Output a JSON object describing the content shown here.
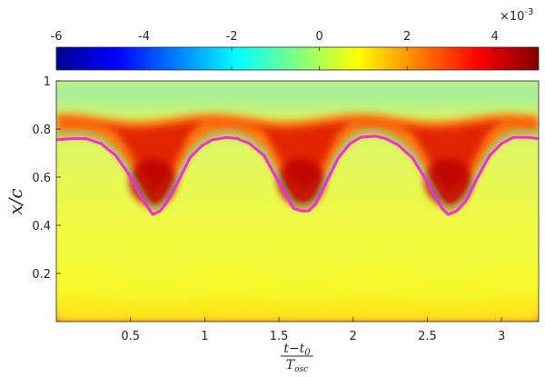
{
  "chart_data": {
    "type": "heatmap",
    "colormap": "jet",
    "colorbar": {
      "range": [
        -0.006,
        0.005
      ],
      "ticks": [
        -6,
        -4,
        -2,
        0,
        2,
        4
      ],
      "tick_labels": [
        "-6",
        "-4",
        "-2",
        "0",
        "2",
        "4"
      ],
      "multiplier_base": "×10",
      "multiplier_exp": "-3",
      "placement": "top"
    },
    "x_axis": {
      "label_num": "t−t",
      "label_num_sub": "0",
      "label_den": "T",
      "label_den_sub": "osc",
      "range": [
        0.0,
        3.25
      ],
      "ticks": [
        0.5,
        1,
        1.5,
        2,
        2.5,
        3
      ],
      "tick_labels": [
        "0.5",
        "1",
        "1.5",
        "2",
        "2.5",
        "3"
      ]
    },
    "y_axis": {
      "label": "x/c",
      "range": [
        0.0,
        1.0
      ],
      "ticks": [
        0.2,
        0.4,
        0.6,
        0.8,
        1
      ],
      "tick_labels": [
        "0.2",
        "0.4",
        "0.6",
        "0.8",
        "1"
      ]
    },
    "contour_line": {
      "color": "#e830e0",
      "points": [
        [
          0.0,
          0.755
        ],
        [
          0.1,
          0.76
        ],
        [
          0.2,
          0.76
        ],
        [
          0.3,
          0.74
        ],
        [
          0.4,
          0.69
        ],
        [
          0.48,
          0.62
        ],
        [
          0.55,
          0.54
        ],
        [
          0.6,
          0.49
        ],
        [
          0.65,
          0.445
        ],
        [
          0.7,
          0.46
        ],
        [
          0.75,
          0.5
        ],
        [
          0.82,
          0.58
        ],
        [
          0.9,
          0.68
        ],
        [
          0.98,
          0.73
        ],
        [
          1.05,
          0.755
        ],
        [
          1.15,
          0.765
        ],
        [
          1.22,
          0.76
        ],
        [
          1.3,
          0.74
        ],
        [
          1.4,
          0.69
        ],
        [
          1.48,
          0.6
        ],
        [
          1.55,
          0.52
        ],
        [
          1.6,
          0.47
        ],
        [
          1.65,
          0.46
        ],
        [
          1.7,
          0.46
        ],
        [
          1.75,
          0.49
        ],
        [
          1.82,
          0.58
        ],
        [
          1.9,
          0.68
        ],
        [
          1.98,
          0.74
        ],
        [
          2.05,
          0.765
        ],
        [
          2.15,
          0.77
        ],
        [
          2.22,
          0.76
        ],
        [
          2.3,
          0.735
        ],
        [
          2.4,
          0.68
        ],
        [
          2.48,
          0.6
        ],
        [
          2.55,
          0.52
        ],
        [
          2.6,
          0.47
        ],
        [
          2.64,
          0.445
        ],
        [
          2.7,
          0.46
        ],
        [
          2.76,
          0.5
        ],
        [
          2.84,
          0.6
        ],
        [
          2.92,
          0.69
        ],
        [
          3.0,
          0.74
        ],
        [
          3.08,
          0.765
        ],
        [
          3.18,
          0.765
        ],
        [
          3.25,
          0.76
        ]
      ]
    }
  }
}
